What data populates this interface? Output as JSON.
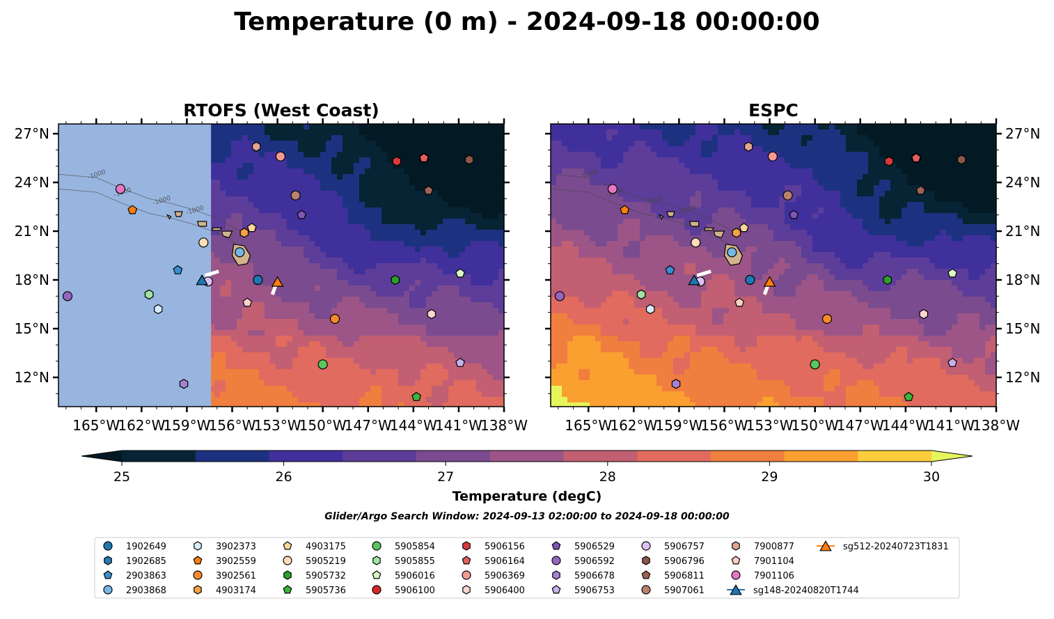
{
  "title": "Temperature (0 m) - 2024-09-18 00:00:00",
  "panels": [
    {
      "title": "RTOFS (West Coast)",
      "mask_west_of_lon": -157.4
    },
    {
      "title": "ESPC",
      "mask_west_of_lon": null
    }
  ],
  "colorbar": {
    "label": "Temperature (degC)",
    "ticks": [
      25,
      26,
      27,
      28,
      29,
      30
    ],
    "tick_labels": [
      "25",
      "26",
      "27",
      "28",
      "29",
      "30"
    ],
    "levels": [
      25,
      25.5,
      26,
      26.5,
      27,
      27.5,
      28,
      28.5,
      29,
      29.5,
      30
    ],
    "colors": [
      "#062433",
      "#1c3280",
      "#40309c",
      "#5c3d99",
      "#7a4b8f",
      "#9c5586",
      "#c25f73",
      "#e06b5e",
      "#f07e3e",
      "#f9a030",
      "#fbcd3c"
    ],
    "under_color": "#031a24",
    "over_color": "#e6f55a",
    "extend": "both"
  },
  "search_window": "Glider/Argo Search Window: 2024-09-13 02:00:00 to 2024-09-18 00:00:00",
  "colors": {
    "land": "#d2b48c",
    "mask": "#98b5e0",
    "frame": "#000000"
  },
  "chart_data": [
    {
      "type": "map",
      "panel": "RTOFS (West Coast)",
      "xlim": [
        -167.5,
        -138
      ],
      "ylim": [
        10.2,
        27.6
      ],
      "x_ticks": [
        -165,
        -162,
        -159,
        -156,
        -153,
        -150,
        -147,
        -144,
        -141,
        -138
      ],
      "x_tick_labels": [
        "165°W",
        "162°W",
        "159°W",
        "156°W",
        "153°W",
        "150°W",
        "147°W",
        "144°W",
        "141°W",
        "138°W"
      ],
      "y_ticks": [
        12,
        15,
        18,
        21,
        24,
        27
      ],
      "y_tick_labels": [
        "12°N",
        "15°N",
        "18°N",
        "21°N",
        "24°N",
        "27°N"
      ],
      "contour_labels": [
        "-1000"
      ]
    },
    {
      "type": "map",
      "panel": "ESPC",
      "xlim": [
        -167.5,
        -138
      ],
      "ylim": [
        10.2,
        27.6
      ],
      "x_ticks": [
        -165,
        -162,
        -159,
        -156,
        -153,
        -150,
        -147,
        -144,
        -141,
        -138
      ],
      "x_tick_labels": [
        "165°W",
        "162°W",
        "159°W",
        "156°W",
        "153°W",
        "150°W",
        "147°W",
        "144°W",
        "141°W",
        "138°W"
      ],
      "y_ticks": [
        12,
        15,
        18,
        21,
        24,
        27
      ],
      "y_tick_labels": [
        "12°N",
        "15°N",
        "18°N",
        "21°N",
        "24°N",
        "27°N"
      ],
      "contour_labels": [
        "-1000"
      ]
    }
  ],
  "platforms": [
    {
      "name": "1902649",
      "marker": "circle",
      "color": "#1f77b4",
      "lon": -154.3,
      "lat": 18.0
    },
    {
      "name": "1902685",
      "marker": "hexagon",
      "color": "#2a7ab5",
      "lon": -161.5,
      "lat": 17.1
    },
    {
      "name": "2903863",
      "marker": "pentagon",
      "color": "#3a8fd0",
      "lon": -159.6,
      "lat": 18.6
    },
    {
      "name": "2903868",
      "marker": "circle",
      "color": "#78b6e6",
      "lon": -155.5,
      "lat": 19.7
    },
    {
      "name": "3902373",
      "marker": "hexagon",
      "color": "#d6ecfb",
      "lon": -160.9,
      "lat": 16.2
    },
    {
      "name": "3902559",
      "marker": "pentagon",
      "color": "#ff7f0e",
      "lon": -162.6,
      "lat": 22.3
    },
    {
      "name": "3902561",
      "marker": "circle",
      "color": "#f68a2d",
      "lon": -149.2,
      "lat": 15.6
    },
    {
      "name": "4903174",
      "marker": "hexagon",
      "color": "#f5a245",
      "lon": -155.2,
      "lat": 20.9
    },
    {
      "name": "4903175",
      "marker": "pentagon",
      "color": "#ffd79a",
      "lon": -154.7,
      "lat": 21.2
    },
    {
      "name": "5905219",
      "marker": "circle",
      "color": "#ffdcb9",
      "lon": -157.9,
      "lat": 20.3
    },
    {
      "name": "5905732",
      "marker": "hexagon",
      "color": "#2ca02c",
      "lon": -145.2,
      "lat": 18.0
    },
    {
      "name": "5905736",
      "marker": "pentagon",
      "color": "#3cb53c",
      "lon": -143.8,
      "lat": 10.8
    },
    {
      "name": "5905854",
      "marker": "circle",
      "color": "#5fc45f",
      "lon": -150.0,
      "lat": 12.8
    },
    {
      "name": "5905855",
      "marker": "hexagon",
      "color": "#a1e3a1",
      "lon": -161.5,
      "lat": 17.1
    },
    {
      "name": "5906016",
      "marker": "pentagon",
      "color": "#d8fbc4",
      "lon": -140.9,
      "lat": 18.4
    },
    {
      "name": "5906100",
      "marker": "circle",
      "color": "#d62728",
      "lon": -143.3,
      "lat": 25.5
    },
    {
      "name": "5906156",
      "marker": "hexagon",
      "color": "#d8393a",
      "lon": -145.1,
      "lat": 25.3
    },
    {
      "name": "5906164",
      "marker": "pentagon",
      "color": "#e25f5f",
      "lon": -143.3,
      "lat": 25.5
    },
    {
      "name": "5906369",
      "marker": "circle",
      "color": "#f59a92",
      "lon": -152.8,
      "lat": 25.6
    },
    {
      "name": "5906400",
      "marker": "hexagon",
      "color": "#fbd5d0",
      "lon": -142.8,
      "lat": 15.9
    },
    {
      "name": "5906529",
      "marker": "pentagon",
      "color": "#7f56b5",
      "lon": -151.4,
      "lat": 22.0
    },
    {
      "name": "5906592",
      "marker": "circle",
      "color": "#9467bd",
      "lon": -166.9,
      "lat": 17.0
    },
    {
      "name": "5906678",
      "marker": "hexagon",
      "color": "#a881d3",
      "lon": -159.2,
      "lat": 11.6
    },
    {
      "name": "5906753",
      "marker": "pentagon",
      "color": "#c5b0ea",
      "lon": -140.9,
      "lat": 12.9
    },
    {
      "name": "5906757",
      "marker": "circle",
      "color": "#ddc2f2",
      "lon": -157.6,
      "lat": 17.9
    },
    {
      "name": "5906796",
      "marker": "hexagon",
      "color": "#8c564b",
      "lon": -140.3,
      "lat": 25.4
    },
    {
      "name": "5906811",
      "marker": "pentagon",
      "color": "#9e6355",
      "lon": -143.0,
      "lat": 23.5
    },
    {
      "name": "5907061",
      "marker": "circle",
      "color": "#b9826f",
      "lon": -151.8,
      "lat": 23.2
    },
    {
      "name": "7900877",
      "marker": "hexagon",
      "color": "#dfa590",
      "lon": -154.4,
      "lat": 26.2
    },
    {
      "name": "7901104",
      "marker": "pentagon",
      "color": "#fbd1c5",
      "lon": -155.0,
      "lat": 16.6
    },
    {
      "name": "7901106",
      "marker": "circle",
      "color": "#e377c2",
      "lon": -163.4,
      "lat": 23.6
    },
    {
      "name": "sg148-20240820T1744",
      "marker": "triangle",
      "color": "#1f77b4",
      "lon": -158.0,
      "lat": 18.0
    },
    {
      "name": "sg512-20240723T1831",
      "marker": "triangle",
      "color": "#ff7f0e",
      "lon": -153.0,
      "lat": 17.9
    }
  ]
}
